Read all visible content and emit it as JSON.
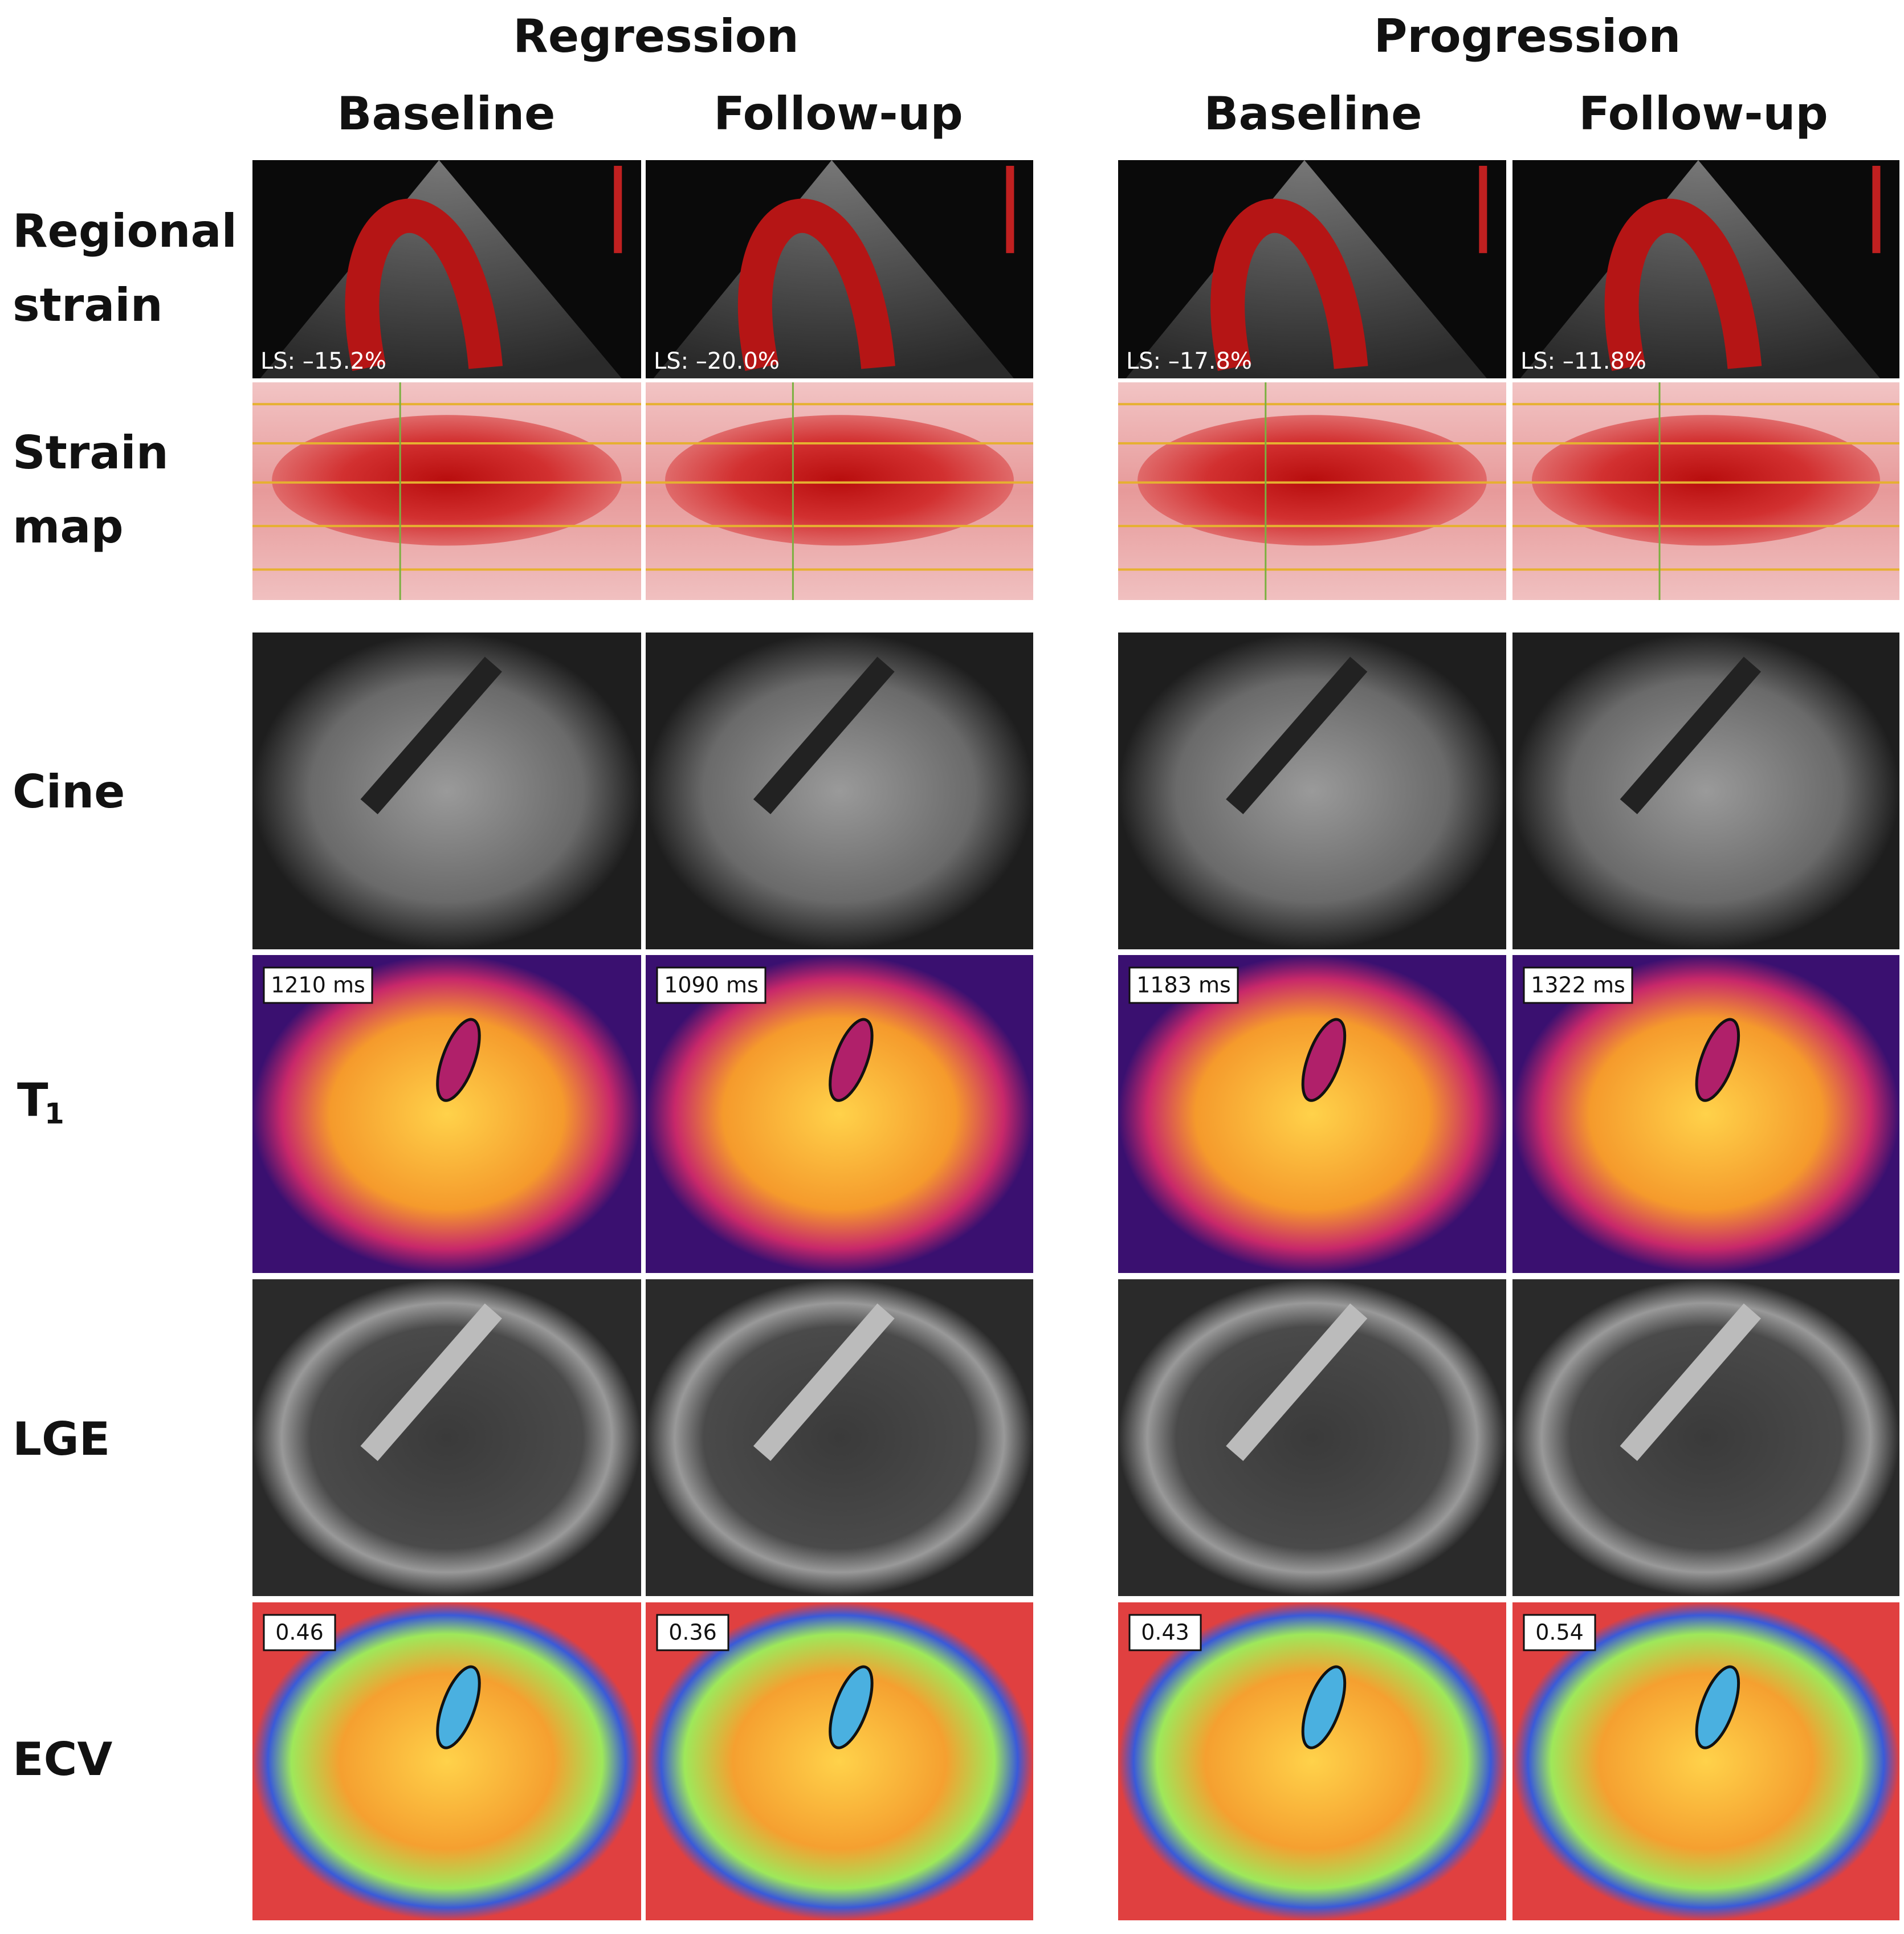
{
  "header": {
    "groups": [
      {
        "title": "Regression",
        "columns": [
          "Baseline",
          "Follow-up"
        ]
      },
      {
        "title": "Progression",
        "columns": [
          "Baseline",
          "Follow-up"
        ]
      }
    ]
  },
  "rows": [
    {
      "label": [
        "Regional",
        "strain"
      ]
    },
    {
      "label": [
        "Strain",
        "map"
      ]
    },
    {
      "label": [
        "Cine"
      ]
    },
    {
      "label": [
        "T",
        "1"
      ]
    },
    {
      "label": [
        "LGE"
      ]
    },
    {
      "label": [
        "ECV"
      ]
    }
  ],
  "panels": {
    "strain": [
      "LS: –15.2%",
      "LS: –20.0%",
      "LS: –17.8%",
      "LS: –11.8%"
    ],
    "t1": [
      "1210 ms",
      "1090 ms",
      "1183 ms",
      "1322 ms"
    ],
    "ecv": [
      "0.46",
      "0.36",
      "0.43",
      "0.54"
    ]
  }
}
